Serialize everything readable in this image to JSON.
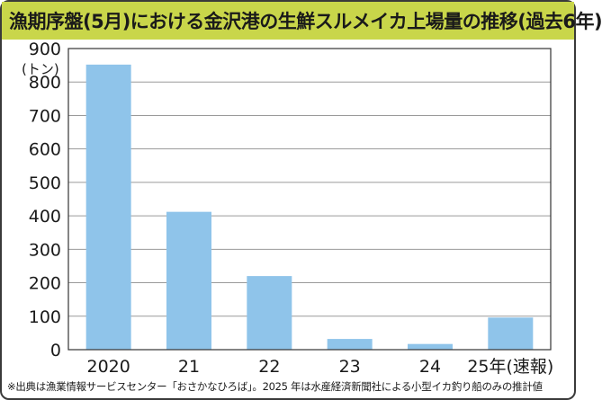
{
  "header": {
    "title": "漁期序盤(5月)における金沢港の生鮮スルメイカ上場量の推移(過去6年)"
  },
  "chart_data": {
    "type": "bar",
    "title": "漁期序盤(5月)における金沢港の生鮮スルメイカ上場量の推移(過去6年)",
    "ylabel": "(トン)",
    "xlabel": "",
    "categories": [
      "2020",
      "21",
      "22",
      "23",
      "24",
      "25年(速報)"
    ],
    "values": [
      852,
      412,
      220,
      32,
      17,
      96
    ],
    "ylim": [
      0,
      900
    ],
    "yticks": [
      0,
      100,
      200,
      300,
      400,
      500,
      600,
      700,
      800,
      900
    ],
    "grid": true,
    "bar_color": "#8fc4ea"
  },
  "footnote": "※出典は漁業情報サービスセンター「おさかなひろば」。2025 年は水産経済新聞社による小型イカ釣り船のみの推計値"
}
